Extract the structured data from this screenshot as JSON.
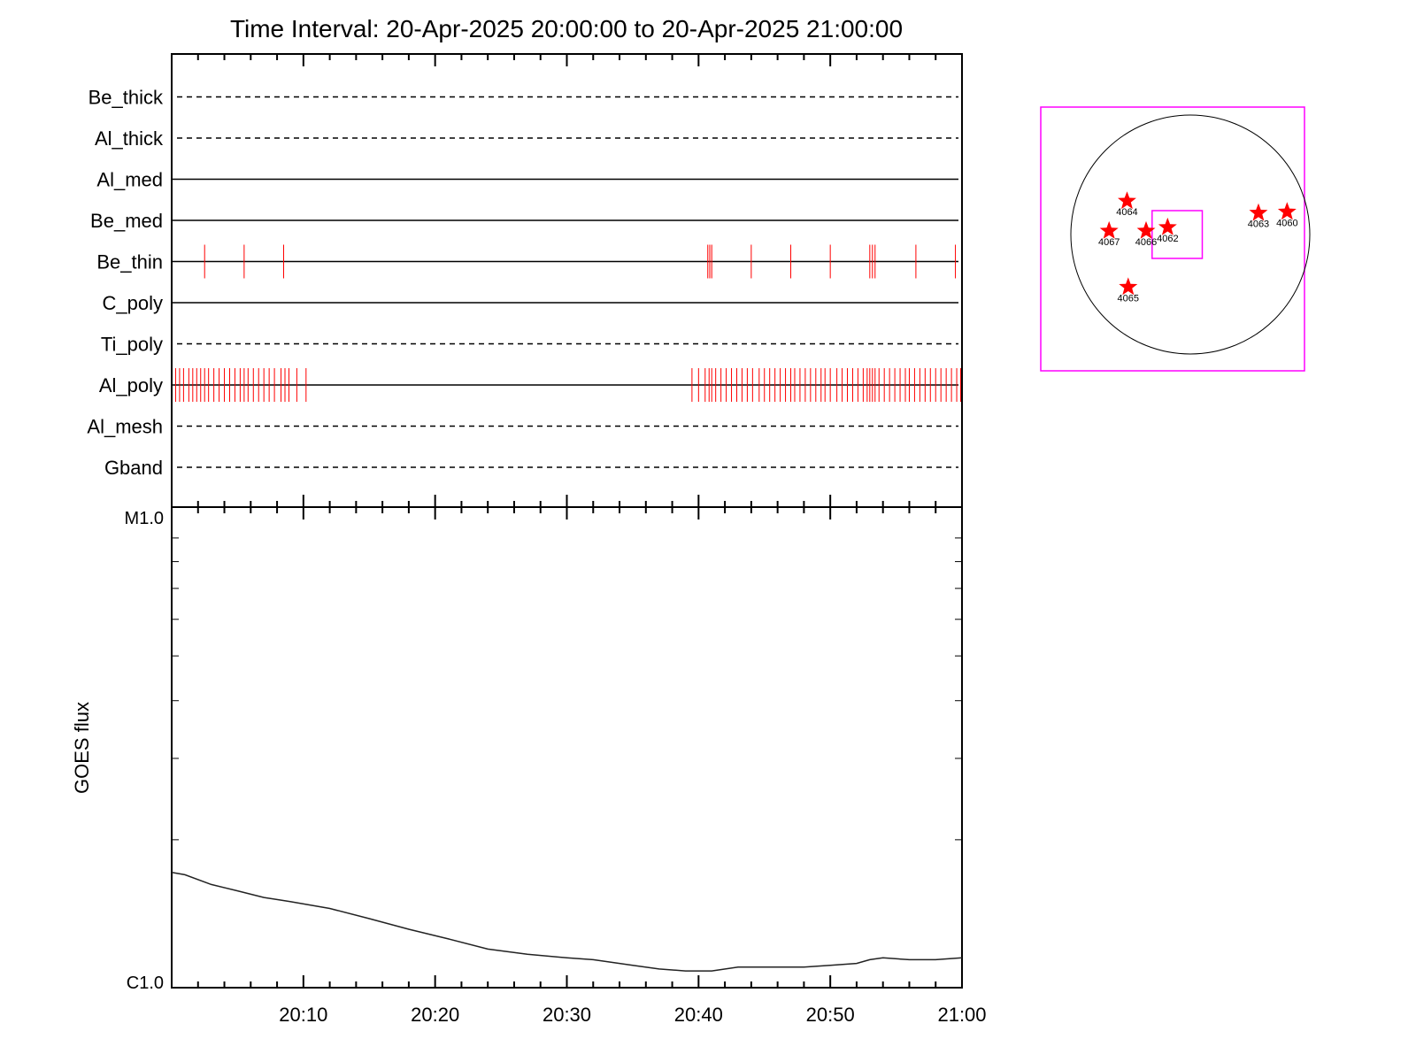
{
  "title": "Time Interval: 20-Apr-2025 20:00:00 to 20-Apr-2025 21:00:00",
  "colors": {
    "axis": "#000000",
    "event": "#ff0000",
    "box": "#ff00ff",
    "flux": "#000000",
    "disk": "#000000",
    "star": "#ff0000"
  },
  "chart_data": [
    {
      "type": "timeline",
      "title": "Time Interval: 20-Apr-2025 20:00:00 to 20-Apr-2025 21:00:00",
      "xlim": [
        "20:00",
        "21:00"
      ],
      "x_unit": "minutes after 20:00",
      "filters": [
        {
          "name": "Be_thick",
          "style": "dashed",
          "events": []
        },
        {
          "name": "Al_thick",
          "style": "dashed",
          "events": []
        },
        {
          "name": "Al_med",
          "style": "solid",
          "events": []
        },
        {
          "name": "Be_med",
          "style": "solid",
          "events": []
        },
        {
          "name": "Be_thin",
          "style": "solid",
          "events": [
            2.5,
            5.5,
            8.5,
            40.7,
            40.85,
            41.0,
            44.0,
            47.0,
            50.0,
            53.0,
            53.2,
            53.4,
            56.5,
            59.5
          ]
        },
        {
          "name": "C_poly",
          "style": "solid",
          "events": []
        },
        {
          "name": "Ti_poly",
          "style": "dashed",
          "events": []
        },
        {
          "name": "Al_poly",
          "style": "solid",
          "events": [
            0.3,
            0.6,
            0.9,
            1.3,
            1.6,
            1.9,
            2.2,
            2.5,
            2.8,
            3.2,
            3.6,
            4.0,
            4.4,
            4.8,
            5.2,
            5.5,
            5.8,
            6.2,
            6.6,
            7.0,
            7.4,
            7.8,
            8.3,
            8.6,
            8.9,
            9.5,
            10.2,
            39.5,
            40.0,
            40.5,
            40.8,
            41.0,
            41.3,
            41.7,
            42.1,
            42.5,
            42.9,
            43.3,
            43.7,
            44.1,
            44.6,
            45.0,
            45.4,
            45.8,
            46.2,
            46.6,
            47.0,
            47.3,
            47.7,
            48.1,
            48.5,
            48.9,
            49.3,
            49.6,
            50.0,
            50.5,
            50.9,
            51.3,
            51.7,
            52.1,
            52.5,
            52.8,
            53.0,
            53.2,
            53.4,
            53.7,
            54.1,
            54.5,
            54.9,
            55.3,
            55.7,
            56.0,
            56.4,
            56.8,
            57.2,
            57.6,
            58.0,
            58.4,
            58.8,
            59.2,
            59.6,
            59.9
          ]
        },
        {
          "name": "Al_mesh",
          "style": "dashed",
          "events": []
        },
        {
          "name": "Gband",
          "style": "dashed",
          "events": []
        }
      ]
    },
    {
      "type": "line",
      "ylabel": "GOES flux",
      "yscale": "log",
      "ylim": [
        1e-06,
        1e-05
      ],
      "ytick_labels": [
        "C1.0",
        "M1.0"
      ],
      "xlim": [
        "20:00",
        "21:00"
      ],
      "x_unit": "minutes after 20:00",
      "xticks": [
        "20:10",
        "20:20",
        "20:30",
        "20:40",
        "20:50",
        "21:00"
      ],
      "series": [
        {
          "x": [
            0,
            1,
            3,
            5,
            7,
            9,
            12,
            15,
            18,
            21,
            24,
            27,
            30,
            32,
            35,
            37,
            39,
            41,
            43,
            45,
            48,
            50,
            52,
            53,
            54,
            56,
            58,
            60
          ],
          "values": [
            1.7e-06,
            1.68e-06,
            1.6e-06,
            1.55e-06,
            1.5e-06,
            1.47e-06,
            1.42e-06,
            1.35e-06,
            1.28e-06,
            1.22e-06,
            1.16e-06,
            1.13e-06,
            1.11e-06,
            1.1e-06,
            1.07e-06,
            1.05e-06,
            1.04e-06,
            1.04e-06,
            1.06e-06,
            1.06e-06,
            1.06e-06,
            1.07e-06,
            1.08e-06,
            1.1e-06,
            1.11e-06,
            1.1e-06,
            1.1e-06,
            1.11e-06
          ]
        }
      ]
    },
    {
      "type": "scatter",
      "description_of_axes": "solar disk map",
      "points": [
        {
          "label": "4064",
          "x": -0.53,
          "y": 0.28
        },
        {
          "label": "4067",
          "x": -0.68,
          "y": 0.03
        },
        {
          "label": "4066",
          "x": -0.37,
          "y": 0.03
        },
        {
          "label": "4062",
          "x": -0.19,
          "y": 0.06
        },
        {
          "label": "4063",
          "x": 0.57,
          "y": 0.18
        },
        {
          "label": "4060",
          "x": 0.81,
          "y": 0.19
        },
        {
          "label": "4065",
          "x": -0.52,
          "y": -0.44
        }
      ],
      "field_of_view": {
        "x": [
          -0.32,
          0.1
        ],
        "y": [
          -0.2,
          0.2
        ]
      }
    }
  ]
}
